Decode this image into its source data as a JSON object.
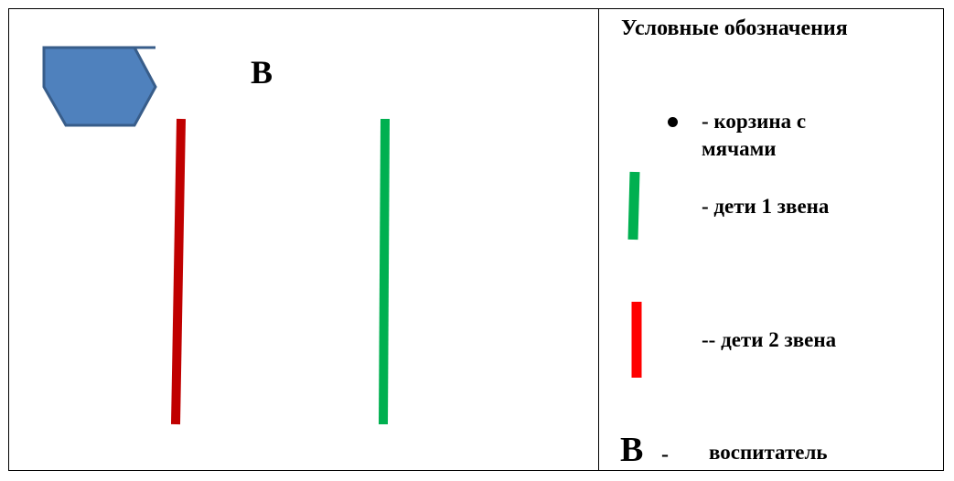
{
  "diagram": {
    "position_label": "В",
    "colors": {
      "hexagon_fill": "#4F81BD",
      "hexagon_stroke": "#385D8A",
      "line_group2": "#C00000",
      "line_group1": "#00B050"
    },
    "icons": [
      "hexagon-basket-icon",
      "red-line-icon",
      "green-line-icon"
    ]
  },
  "legend": {
    "title": "Условные обозначения",
    "items": [
      {
        "symbol": "bullet",
        "text": "- корзина с",
        "text_line2": "мячами"
      },
      {
        "symbol": "green-line",
        "text": "- дети 1 звена",
        "color": "#00B050"
      },
      {
        "symbol": "red-line",
        "text": "-- дети 2 звена",
        "color": "#FF0000"
      },
      {
        "symbol": "В",
        "dash": "-",
        "text": "воспитатель"
      }
    ]
  }
}
